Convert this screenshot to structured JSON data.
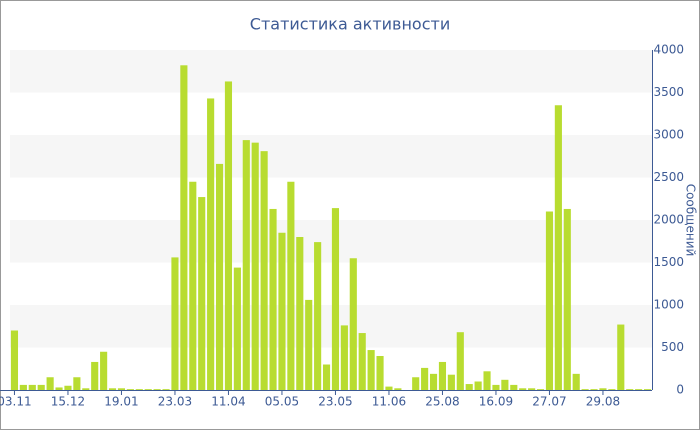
{
  "chart_data": {
    "type": "bar",
    "title": "Статистика активности",
    "y_axis_label": "Сообщений",
    "categories": [
      "03.11",
      null,
      null,
      null,
      null,
      null,
      "15.12",
      null,
      null,
      null,
      null,
      null,
      "19.01",
      null,
      null,
      null,
      null,
      null,
      "23.03",
      null,
      null,
      null,
      null,
      null,
      "11.04",
      null,
      null,
      null,
      null,
      null,
      "05.05",
      null,
      null,
      null,
      null,
      null,
      "23.05",
      null,
      null,
      null,
      null,
      null,
      "11.06",
      null,
      null,
      null,
      null,
      null,
      "25.08",
      null,
      null,
      null,
      null,
      null,
      "16.09",
      null,
      null,
      null,
      null,
      null,
      "27.07",
      null,
      null,
      null,
      null,
      null,
      "29.08",
      null,
      null,
      null,
      null,
      null
    ],
    "values": [
      700,
      60,
      60,
      60,
      150,
      30,
      50,
      150,
      20,
      330,
      450,
      20,
      20,
      10,
      10,
      10,
      10,
      10,
      1560,
      3820,
      2450,
      2270,
      3430,
      2660,
      3630,
      1440,
      2940,
      2910,
      2810,
      2130,
      1850,
      2450,
      1800,
      1060,
      1740,
      300,
      2140,
      760,
      1550,
      670,
      470,
      400,
      40,
      20,
      0,
      150,
      260,
      190,
      330,
      180,
      680,
      70,
      100,
      220,
      60,
      120,
      60,
      20,
      20,
      10,
      2100,
      3350,
      2130,
      190,
      10,
      10,
      20,
      10,
      770,
      10,
      10,
      10
    ],
    "color": "#b8dc30",
    "ylim": [
      0,
      4000
    ],
    "yticks": [
      0,
      500,
      1000,
      1500,
      2000,
      2500,
      3000,
      3500,
      4000
    ],
    "grid": "bands",
    "y_axis_side": "right"
  }
}
